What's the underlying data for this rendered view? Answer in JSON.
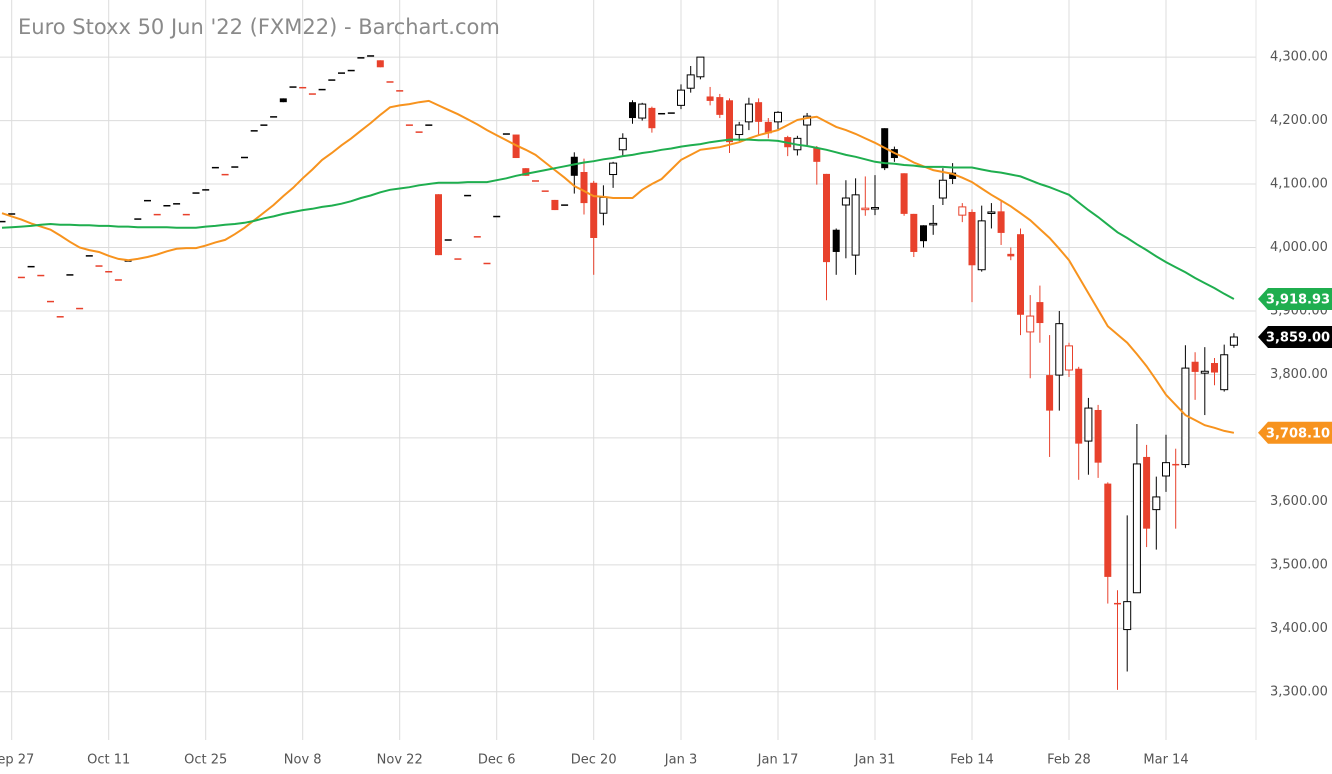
{
  "chart_data": {
    "type": "candlestick",
    "title": "Euro Stoxx 50 Jun '22 (FXM22) - Barchart.com",
    "categories": [
      null,
      "Sep 27",
      null,
      null,
      null,
      null,
      null,
      null,
      null,
      null,
      null,
      "Oct 11",
      null,
      null,
      null,
      null,
      null,
      null,
      null,
      null,
      null,
      "Oct 25",
      null,
      null,
      null,
      null,
      null,
      null,
      null,
      null,
      null,
      "Nov 8",
      null,
      null,
      null,
      null,
      null,
      null,
      null,
      null,
      null,
      "Nov 22",
      null,
      null,
      null,
      null,
      null,
      null,
      null,
      null,
      null,
      "Dec 6",
      null,
      null,
      null,
      null,
      null,
      null,
      null,
      null,
      null,
      "Dec 20",
      null,
      null,
      null,
      null,
      null,
      null,
      null,
      null,
      "Jan 3",
      null,
      null,
      null,
      null,
      null,
      null,
      null,
      null,
      null,
      "Jan 17",
      null,
      null,
      null,
      null,
      null,
      null,
      null,
      null,
      null,
      "Jan 31",
      null,
      null,
      null,
      null,
      null,
      null,
      null,
      null,
      null,
      "Feb 14",
      null,
      null,
      null,
      null,
      null,
      null,
      null,
      null,
      null,
      "Feb 28",
      null,
      null,
      null,
      null,
      null,
      null,
      null,
      null,
      null,
      "Mar 14",
      null,
      null,
      null,
      null,
      null,
      null,
      null
    ],
    "open": [
      4042,
      4054,
      3954,
      3971,
      3957,
      3916,
      3892,
      3958,
      3905,
      3988,
      3972,
      3963,
      3950,
      3980,
      4046,
      4075,
      4053,
      4067,
      4070,
      4053,
      4087,
      4092,
      4127,
      4116,
      4128,
      4143,
      4185,
      4194,
      4207,
      4235,
      4254,
      4253,
      4243,
      4250,
      4265,
      4276,
      4280,
      4300,
      4303,
      4295,
      4262,
      4248,
      4194,
      4183,
      4194,
      4084,
      4013,
      3983,
      4083,
      4018,
      3976,
      4050,
      4180,
      4178,
      4125,
      4106,
      4090,
      4075,
      4068,
      4143,
      4119,
      4102,
      4054,
      4115,
      4154,
      4229,
      4204,
      4220,
      4212,
      4213,
      4224,
      4251,
      4269,
      4238,
      4237,
      4232,
      4178,
      4198,
      4229,
      4198,
      4198,
      4174,
      4154,
      4193,
      4157,
      4116,
      4028,
      4067,
      3988,
      4060,
      4062,
      4188,
      4155,
      4117,
      4053,
      4035,
      4036,
      4078,
      4118,
      4051,
      4056,
      3965,
      4054,
      4057,
      3990,
      4021,
      3867,
      3914,
      3799,
      3799,
      3807,
      3809,
      3695,
      3744,
      3628,
      3440,
      3398,
      3456,
      3670,
      3587,
      3640,
      3659,
      3658,
      3820,
      3802,
      3818,
      3776,
      3846
    ],
    "high": [
      4042,
      4054,
      3954,
      3971,
      3957,
      3916,
      3892,
      3958,
      3905,
      3988,
      3972,
      3963,
      3950,
      3980,
      4046,
      4075,
      4053,
      4067,
      4070,
      4053,
      4087,
      4092,
      4127,
      4116,
      4128,
      4143,
      4185,
      4194,
      4207,
      4235,
      4254,
      4253,
      4243,
      4250,
      4265,
      4276,
      4280,
      4300,
      4303,
      4295,
      4262,
      4248,
      4194,
      4183,
      4194,
      4084,
      4013,
      3983,
      4083,
      4018,
      3976,
      4050,
      4180,
      4178,
      4125,
      4106,
      4090,
      4075,
      4068,
      4150,
      4140,
      4105,
      4098,
      4135,
      4180,
      4232,
      4228,
      4222,
      4212,
      4213,
      4257,
      4286,
      4300,
      4253,
      4242,
      4235,
      4198,
      4236,
      4235,
      4204,
      4215,
      4176,
      4176,
      4212,
      4160,
      4116,
      4030,
      4106,
      4109,
      4112,
      4114,
      4188,
      4159,
      4117,
      4053,
      4035,
      4067,
      4125,
      4133,
      4070,
      4060,
      4066,
      4070,
      4074,
      4000,
      4030,
      3925,
      3940,
      3862,
      3900,
      3850,
      3812,
      3763,
      3752,
      3630,
      3460,
      3578,
      3722,
      3689,
      3639,
      3705,
      3683,
      3846,
      3835,
      3843,
      3826,
      3847,
      3865
    ],
    "low": [
      4042,
      4054,
      3954,
      3971,
      3957,
      3916,
      3892,
      3958,
      3905,
      3988,
      3972,
      3963,
      3950,
      3980,
      4046,
      4075,
      4053,
      4067,
      4070,
      4053,
      4087,
      4092,
      4127,
      4116,
      4128,
      4143,
      4185,
      4194,
      4207,
      4229,
      4254,
      4253,
      4243,
      4250,
      4265,
      4276,
      4280,
      4300,
      4303,
      4284,
      4262,
      4248,
      4194,
      4183,
      4194,
      3988,
      4013,
      3983,
      4083,
      4018,
      3976,
      4050,
      4180,
      4141,
      4113,
      4106,
      4090,
      4059,
      4068,
      4085,
      4052,
      3957,
      4035,
      4094,
      4143,
      4195,
      4200,
      4181,
      4212,
      4213,
      4218,
      4244,
      4265,
      4224,
      4204,
      4149,
      4168,
      4185,
      4177,
      4172,
      4185,
      4144,
      4145,
      4161,
      4099,
      3917,
      3957,
      3983,
      3957,
      4050,
      4051,
      4122,
      4135,
      4050,
      3985,
      4000,
      4020,
      4067,
      4100,
      4040,
      3914,
      3962,
      4030,
      4004,
      3980,
      3862,
      3794,
      3850,
      3670,
      3743,
      3796,
      3634,
      3642,
      3637,
      3439,
      3303,
      3332,
      3456,
      3528,
      3524,
      3615,
      3557,
      3653,
      3760,
      3736,
      3783,
      3773,
      3842
    ],
    "close": [
      4042,
      4054,
      3954,
      3971,
      3957,
      3916,
      3892,
      3958,
      3905,
      3988,
      3972,
      3963,
      3950,
      3980,
      4046,
      4075,
      4053,
      4067,
      4070,
      4053,
      4087,
      4092,
      4127,
      4116,
      4128,
      4143,
      4185,
      4194,
      4207,
      4229,
      4254,
      4253,
      4243,
      4250,
      4265,
      4276,
      4280,
      4300,
      4303,
      4284,
      4262,
      4248,
      4194,
      4183,
      4194,
      3988,
      4013,
      3983,
      4083,
      4018,
      3976,
      4050,
      4180,
      4141,
      4113,
      4106,
      4090,
      4059,
      4068,
      4113,
      4070,
      4015,
      4079,
      4133,
      4172,
      4204,
      4226,
      4188,
      4212,
      4213,
      4248,
      4272,
      4300,
      4231,
      4209,
      4166,
      4193,
      4226,
      4198,
      4180,
      4213,
      4158,
      4172,
      4207,
      4135,
      3977,
      3993,
      4078,
      4083,
      4062,
      4063,
      4125,
      4141,
      4053,
      3993,
      4010,
      4038,
      4106,
      4108,
      4064,
      3972,
      4042,
      4056,
      4023,
      3986,
      3894,
      3892,
      3881,
      3743,
      3880,
      3845,
      3691,
      3747,
      3661,
      3481,
      3440,
      3442,
      3659,
      3557,
      3607,
      3661,
      3659,
      3810,
      3804,
      3805,
      3803,
      3831,
      3859
    ],
    "close_label": "3,859.00",
    "up_color": "#000000",
    "down_color": "#e8412c",
    "moving_averages": [
      {
        "color": "#f7931e",
        "last_label": "3,708.10",
        "values": [
          4054,
          4049,
          4044,
          4038,
          4033,
          4028,
          4019,
          4009,
          4000,
          3996,
          3993,
          3987,
          3982,
          3980,
          3982,
          3985,
          3989,
          3994,
          3998,
          3999,
          3999,
          4003,
          4008,
          4012,
          4021,
          4031,
          4043,
          4055,
          4067,
          4081,
          4094,
          4109,
          4123,
          4138,
          4149,
          4161,
          4172,
          4184,
          4196,
          4209,
          4221,
          4224,
          4226,
          4229,
          4231,
          4224,
          4217,
          4210,
          4202,
          4194,
          4185,
          4177,
          4169,
          4161,
          4154,
          4146,
          4134,
          4122,
          4110,
          4097,
          4089,
          4081,
          4080,
          4078,
          4078,
          4078,
          4091,
          4100,
          4108,
          4123,
          4138,
          4146,
          4154,
          4156,
          4158,
          4162,
          4166,
          4172,
          4177,
          4181,
          4185,
          4193,
          4201,
          4204,
          4206,
          4198,
          4190,
          4185,
          4179,
          4172,
          4165,
          4157,
          4149,
          4142,
          4134,
          4128,
          4122,
          4119,
          4116,
          4110,
          4103,
          4093,
          4083,
          4074,
          4065,
          4054,
          4043,
          4029,
          4015,
          3998,
          3980,
          3954,
          3928,
          3902,
          3876,
          3863,
          3850,
          3832,
          3813,
          3791,
          3768,
          3752,
          3736,
          3728,
          3720,
          3716,
          3711,
          3708.1
        ]
      },
      {
        "color": "#1fae4f",
        "last_label": "3,918.93",
        "values": [
          4031,
          4032,
          4033,
          4034,
          4036,
          4037,
          4036,
          4036,
          4035,
          4035,
          4034,
          4034,
          4033,
          4033,
          4032,
          4032,
          4032,
          4032,
          4031,
          4031,
          4031,
          4033,
          4034,
          4036,
          4037,
          4039,
          4042,
          4046,
          4049,
          4053,
          4056,
          4059,
          4061,
          4064,
          4066,
          4069,
          4073,
          4078,
          4082,
          4087,
          4091,
          4093,
          4095,
          4098,
          4100,
          4102,
          4102,
          4102,
          4103,
          4103,
          4103,
          4106,
          4109,
          4113,
          4116,
          4119,
          4122,
          4125,
          4128,
          4131,
          4134,
          4136,
          4139,
          4141,
          4144,
          4146,
          4149,
          4151,
          4154,
          4156,
          4159,
          4161,
          4163,
          4166,
          4168,
          4170,
          4170,
          4170,
          4169,
          4169,
          4168,
          4165,
          4162,
          4160,
          4157,
          4154,
          4150,
          4146,
          4143,
          4139,
          4135,
          4133,
          4132,
          4130,
          4129,
          4127,
          4127,
          4127,
          4126,
          4126,
          4126,
          4123,
          4120,
          4118,
          4115,
          4112,
          4106,
          4100,
          4095,
          4089,
          4083,
          4071,
          4059,
          4048,
          4036,
          4024,
          4015,
          4005,
          3996,
          3986,
          3977,
          3969,
          3961,
          3952,
          3944,
          3936,
          3927,
          3918.93
        ]
      }
    ],
    "ylim": [
      3224,
      4390
    ],
    "yticks": [
      {
        "value": 3300,
        "label": "3,300.00"
      },
      {
        "value": 3400,
        "label": "3,400.00"
      },
      {
        "value": 3500,
        "label": "3,500.00"
      },
      {
        "value": 3600,
        "label": "3,600.00"
      },
      {
        "value": 3700,
        "label": "3,700.00"
      },
      {
        "value": 3800,
        "label": "3,800.00"
      },
      {
        "value": 3900,
        "label": "3,900.00"
      },
      {
        "value": 4000,
        "label": "4,000.00"
      },
      {
        "value": 4100,
        "label": "4,100.00"
      },
      {
        "value": 4200,
        "label": "4,200.00"
      },
      {
        "value": 4300,
        "label": "4,300.00"
      }
    ],
    "grid": true
  }
}
